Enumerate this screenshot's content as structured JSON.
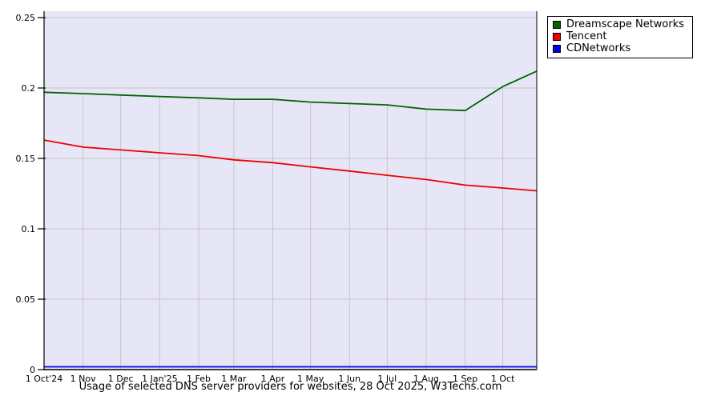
{
  "title": "Usage of selected DNS server providers for websites, 28 Oct 2025, W3Techs.com",
  "legend": {
    "items": [
      {
        "label": "Dreamscape Networks",
        "color": "#006400"
      },
      {
        "label": "Tencent",
        "color": "#ee0000"
      },
      {
        "label": "CDNetworks",
        "color": "#0000ee"
      }
    ]
  },
  "chart_data": {
    "type": "line",
    "title": "Usage of selected DNS server providers for websites, 28 Oct 2025, W3Techs.com",
    "x_tick_labels": [
      "1 Oct'24",
      "1 Nov",
      "1 Dec",
      "1 Jan'25",
      "1 Feb",
      "1 Mar",
      "1 Apr",
      "1 May",
      "1 Jun",
      "1 Jul",
      "1 Aug",
      "1 Sep",
      "1 Oct"
    ],
    "x_tick_days": [
      0,
      31,
      61,
      92,
      123,
      151,
      182,
      212,
      243,
      273,
      304,
      335,
      365
    ],
    "x_days": [
      0,
      31,
      61,
      92,
      123,
      151,
      182,
      212,
      243,
      273,
      304,
      335,
      365,
      392
    ],
    "x_total_days": 392,
    "y_ticks": [
      0,
      0.05,
      0.1,
      0.15,
      0.2,
      0.25
    ],
    "y_tick_labels": [
      "0",
      "0.05",
      "0.1",
      "0.15",
      "0.2",
      "0.25"
    ],
    "ylim": [
      0,
      0.25
    ],
    "grid": true,
    "legend_position": "top-right",
    "series": [
      {
        "name": "Dreamscape Networks",
        "color": "#006400",
        "values": [
          0.197,
          0.196,
          0.195,
          0.194,
          0.193,
          0.192,
          0.192,
          0.19,
          0.189,
          0.188,
          0.185,
          0.184,
          0.201,
          0.212
        ]
      },
      {
        "name": "Tencent",
        "color": "#ee0000",
        "values": [
          0.163,
          0.158,
          0.156,
          0.154,
          0.152,
          0.149,
          0.147,
          0.144,
          0.141,
          0.138,
          0.135,
          0.131,
          0.129,
          0.127
        ]
      },
      {
        "name": "CDNetworks",
        "color": "#0000ee",
        "values": [
          0.002,
          0.002,
          0.002,
          0.002,
          0.002,
          0.002,
          0.002,
          0.002,
          0.002,
          0.002,
          0.002,
          0.002,
          0.002,
          0.002
        ]
      }
    ],
    "plot_bg": "#e6e6f6",
    "grid_color": "#c6c6c6",
    "axis_color": "#000000"
  }
}
